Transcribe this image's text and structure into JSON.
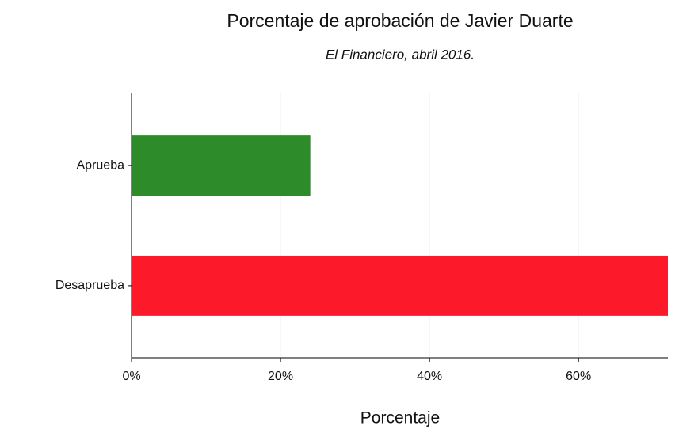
{
  "chart_data": {
    "type": "barh",
    "title": "Porcentaje de aprobación de Javier Duarte",
    "subtitle": "El Financiero, abril 2016.",
    "x_label": "Porcentaje",
    "categories": [
      "Aprueba",
      "Desaprueba"
    ],
    "values": [
      24,
      72
    ],
    "colors": [
      "#2e8b2a",
      "#fc1a2a"
    ],
    "xlim": [
      0,
      72
    ],
    "xticks": [
      {
        "value": 0,
        "label": "0%"
      },
      {
        "value": 20,
        "label": "20%"
      },
      {
        "value": 40,
        "label": "40%"
      },
      {
        "value": 60,
        "label": "60%"
      }
    ],
    "grid": true
  }
}
